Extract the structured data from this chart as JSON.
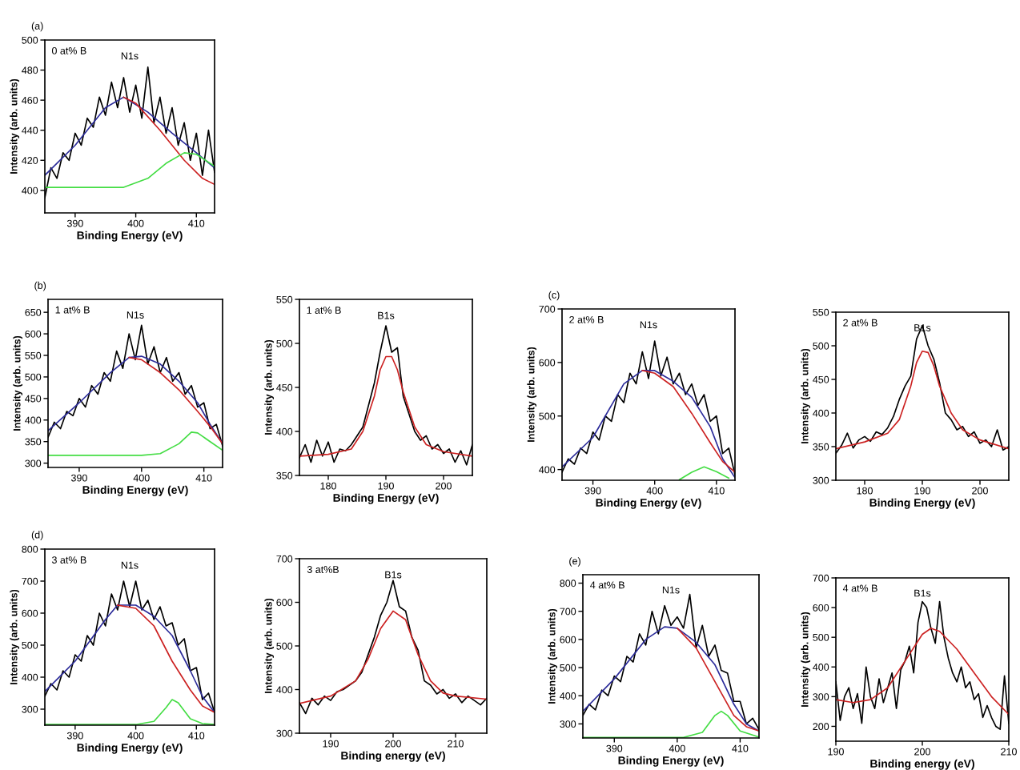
{
  "chart_data": [
    {
      "type": "line",
      "title": "(a)",
      "xlabel": "Binding Energy (eV)",
      "ylabel": "Intensity (arb. units)",
      "annotations": [
        "0 at% B",
        "N1s"
      ],
      "xlim": [
        385,
        413
      ],
      "ylim": [
        385,
        500
      ],
      "xticks": [
        390,
        400,
        410
      ],
      "yticks": [
        400,
        420,
        440,
        460,
        480,
        500
      ],
      "series": [
        {
          "color": "#000000",
          "x": [
            385,
            386,
            387,
            388,
            389,
            390,
            391,
            392,
            393,
            394,
            395,
            396,
            397,
            398,
            399,
            400,
            401,
            402,
            403,
            404,
            405,
            406,
            407,
            408,
            409,
            410,
            411,
            412,
            413
          ],
          "values": [
            395,
            415,
            408,
            425,
            420,
            438,
            430,
            448,
            442,
            462,
            450,
            472,
            455,
            475,
            452,
            470,
            448,
            482,
            445,
            462,
            438,
            455,
            430,
            445,
            420,
            438,
            410,
            440,
            412
          ]
        },
        {
          "color": "#2b2b9a",
          "x": [
            385,
            390,
            395,
            398,
            402,
            406,
            410,
            413
          ],
          "values": [
            410,
            430,
            455,
            462,
            452,
            438,
            425,
            415
          ]
        },
        {
          "color": "#cc2222",
          "x": [
            398,
            400,
            404,
            408,
            411,
            413
          ],
          "values": [
            462,
            458,
            440,
            420,
            408,
            404
          ]
        },
        {
          "color": "#44dd44",
          "x": [
            385,
            398,
            402,
            405,
            408,
            410,
            413
          ],
          "values": [
            402,
            402,
            408,
            418,
            425,
            424,
            416
          ]
        }
      ]
    },
    {
      "type": "line",
      "title": "(b)",
      "xlabel": "Binding Energy (eV)",
      "ylabel": "Intensity (arb. units)",
      "annotations": [
        "1 at% B",
        "N1s"
      ],
      "xlim": [
        385,
        413
      ],
      "ylim": [
        290,
        680
      ],
      "xticks": [
        390,
        400,
        410
      ],
      "yticks": [
        300,
        350,
        400,
        450,
        500,
        550,
        600,
        650
      ],
      "series": [
        {
          "color": "#000000",
          "x": [
            385,
            386,
            387,
            388,
            389,
            390,
            391,
            392,
            393,
            394,
            395,
            396,
            397,
            398,
            399,
            400,
            401,
            402,
            403,
            404,
            405,
            406,
            407,
            408,
            409,
            410,
            411,
            412,
            413
          ],
          "values": [
            360,
            395,
            380,
            420,
            410,
            450,
            430,
            480,
            460,
            510,
            490,
            560,
            520,
            600,
            540,
            620,
            530,
            570,
            510,
            545,
            490,
            510,
            460,
            480,
            430,
            440,
            380,
            390,
            340
          ]
        },
        {
          "color": "#2b2b9a",
          "x": [
            385,
            390,
            395,
            398,
            400,
            403,
            406,
            409,
            411,
            413
          ],
          "values": [
            375,
            440,
            510,
            545,
            548,
            530,
            490,
            440,
            390,
            345
          ]
        },
        {
          "color": "#cc2222",
          "x": [
            398,
            400,
            403,
            406,
            409,
            411,
            413
          ],
          "values": [
            545,
            540,
            510,
            470,
            420,
            385,
            345
          ]
        },
        {
          "color": "#44dd44",
          "x": [
            385,
            400,
            403,
            406,
            408,
            409,
            411,
            413
          ],
          "values": [
            318,
            318,
            322,
            345,
            372,
            370,
            350,
            330
          ]
        }
      ]
    },
    {
      "type": "line",
      "xlabel": "Binding Energy (eV)",
      "ylabel": "Intensity (arb. units)",
      "annotations": [
        "1 at% B",
        "B1s"
      ],
      "xlim": [
        175,
        205
      ],
      "ylim": [
        350,
        550
      ],
      "xticks": [
        180,
        190,
        200
      ],
      "yticks": [
        350,
        400,
        450,
        500,
        550
      ],
      "series": [
        {
          "color": "#000000",
          "x": [
            175,
            176,
            177,
            178,
            179,
            180,
            181,
            182,
            183,
            184,
            185,
            186,
            187,
            188,
            189,
            190,
            191,
            192,
            193,
            194,
            195,
            196,
            197,
            198,
            199,
            200,
            201,
            202,
            203,
            204,
            205
          ],
          "values": [
            370,
            385,
            365,
            390,
            372,
            388,
            365,
            380,
            378,
            385,
            395,
            405,
            430,
            455,
            490,
            520,
            490,
            495,
            440,
            420,
            400,
            390,
            395,
            380,
            385,
            375,
            380,
            365,
            378,
            362,
            385
          ]
        },
        {
          "color": "#cc2222",
          "x": [
            175,
            180,
            184,
            186,
            188,
            189,
            190,
            191,
            192,
            193,
            195,
            197,
            200,
            205
          ],
          "values": [
            372,
            374,
            380,
            400,
            440,
            470,
            485,
            485,
            470,
            445,
            405,
            385,
            377,
            372
          ]
        }
      ]
    },
    {
      "type": "line",
      "title": "(c)",
      "xlabel": "Binding Energy (eV)",
      "ylabel": "Intensity (arb. units)",
      "annotations": [
        "2 at% B",
        "N1s"
      ],
      "xlim": [
        385,
        413
      ],
      "ylim": [
        380,
        700
      ],
      "xticks": [
        390,
        400,
        410
      ],
      "yticks": [
        400,
        500,
        600,
        700
      ],
      "series": [
        {
          "color": "#000000",
          "x": [
            385,
            386,
            387,
            388,
            389,
            390,
            391,
            392,
            393,
            394,
            395,
            396,
            397,
            398,
            399,
            400,
            401,
            402,
            403,
            404,
            405,
            406,
            407,
            408,
            409,
            410,
            411,
            412,
            413
          ],
          "values": [
            395,
            420,
            410,
            440,
            430,
            470,
            455,
            500,
            490,
            540,
            525,
            580,
            560,
            620,
            570,
            640,
            575,
            610,
            560,
            580,
            540,
            560,
            520,
            540,
            490,
            500,
            430,
            440,
            390
          ]
        },
        {
          "color": "#2b2b9a",
          "x": [
            385,
            390,
            395,
            398,
            400,
            403,
            406,
            409,
            411,
            413
          ],
          "values": [
            405,
            460,
            560,
            585,
            585,
            565,
            535,
            480,
            420,
            385
          ]
        },
        {
          "color": "#cc2222",
          "x": [
            398,
            400,
            403,
            406,
            409,
            411,
            413
          ],
          "values": [
            585,
            580,
            555,
            505,
            450,
            415,
            395
          ]
        },
        {
          "color": "#44dd44",
          "x": [
            404,
            406,
            408,
            410,
            412
          ],
          "values": [
            381,
            395,
            405,
            396,
            384
          ]
        }
      ]
    },
    {
      "type": "line",
      "xlabel": "Binding Energy (eV)",
      "ylabel": "Intensity (arb. units)",
      "annotations": [
        "2 at% B",
        "B1s"
      ],
      "xlim": [
        175,
        205
      ],
      "ylim": [
        300,
        550
      ],
      "xticks": [
        180,
        190,
        200
      ],
      "yticks": [
        300,
        350,
        400,
        450,
        500,
        550
      ],
      "series": [
        {
          "color": "#000000",
          "x": [
            175,
            176,
            177,
            178,
            179,
            180,
            181,
            182,
            183,
            184,
            185,
            186,
            187,
            188,
            189,
            190,
            191,
            192,
            193,
            194,
            195,
            196,
            197,
            198,
            199,
            200,
            201,
            202,
            203,
            204,
            205
          ],
          "values": [
            340,
            352,
            370,
            348,
            360,
            365,
            358,
            372,
            368,
            378,
            395,
            420,
            440,
            455,
            510,
            530,
            500,
            480,
            445,
            400,
            390,
            375,
            380,
            365,
            372,
            355,
            360,
            350,
            375,
            345,
            350
          ]
        },
        {
          "color": "#cc2222",
          "x": [
            175,
            180,
            184,
            186,
            188,
            189,
            190,
            191,
            192,
            193,
            195,
            197,
            200,
            205
          ],
          "values": [
            347,
            357,
            370,
            390,
            440,
            475,
            492,
            490,
            470,
            440,
            400,
            375,
            360,
            347
          ]
        }
      ]
    },
    {
      "type": "line",
      "title": "(d)",
      "xlabel": "Binding Energy (eV)",
      "ylabel": "Intensity (arb. units)",
      "annotations": [
        "3 at% B",
        "N1s"
      ],
      "xlim": [
        385,
        413
      ],
      "ylim": [
        250,
        800
      ],
      "xticks": [
        390,
        400,
        410
      ],
      "yticks": [
        300,
        400,
        500,
        600,
        700,
        800
      ],
      "series": [
        {
          "color": "#000000",
          "x": [
            385,
            386,
            387,
            388,
            389,
            390,
            391,
            392,
            393,
            394,
            395,
            396,
            397,
            398,
            399,
            400,
            401,
            402,
            403,
            404,
            405,
            406,
            407,
            408,
            409,
            410,
            411,
            412,
            413
          ],
          "values": [
            340,
            380,
            360,
            420,
            400,
            470,
            450,
            530,
            500,
            600,
            560,
            660,
            610,
            700,
            620,
            700,
            610,
            640,
            580,
            620,
            560,
            570,
            500,
            520,
            420,
            430,
            330,
            350,
            290
          ]
        },
        {
          "color": "#2b2b9a",
          "x": [
            385,
            390,
            395,
            397,
            400,
            403,
            406,
            409,
            411,
            413
          ],
          "values": [
            355,
            450,
            580,
            625,
            625,
            590,
            530,
            420,
            340,
            290
          ]
        },
        {
          "color": "#cc2222",
          "x": [
            397,
            400,
            403,
            406,
            409,
            411,
            413
          ],
          "values": [
            625,
            615,
            560,
            450,
            360,
            310,
            290
          ]
        },
        {
          "color": "#44dd44",
          "x": [
            385,
            400,
            403,
            405,
            406,
            407,
            409,
            411,
            413
          ],
          "values": [
            252,
            252,
            262,
            305,
            330,
            320,
            270,
            255,
            252
          ]
        }
      ]
    },
    {
      "type": "line",
      "xlabel": "Binding energy (eV)",
      "ylabel": "Intensity (arb. units)",
      "annotations": [
        "3 at%B",
        "B1s"
      ],
      "xlim": [
        185,
        215
      ],
      "ylim": [
        300,
        700
      ],
      "xticks": [
        190,
        200,
        210
      ],
      "yticks": [
        300,
        400,
        500,
        600,
        700
      ],
      "series": [
        {
          "color": "#000000",
          "x": [
            185,
            186,
            187,
            188,
            189,
            190,
            191,
            192,
            193,
            194,
            195,
            196,
            197,
            198,
            199,
            200,
            201,
            202,
            203,
            204,
            205,
            206,
            207,
            208,
            209,
            210,
            211,
            212,
            213,
            214,
            215
          ],
          "values": [
            370,
            345,
            380,
            365,
            385,
            375,
            395,
            400,
            410,
            420,
            440,
            480,
            520,
            570,
            600,
            650,
            590,
            580,
            520,
            490,
            420,
            410,
            390,
            400,
            380,
            390,
            370,
            385,
            375,
            365,
            380
          ]
        },
        {
          "color": "#cc2222",
          "x": [
            185,
            190,
            194,
            196,
            198,
            200,
            202,
            204,
            206,
            208,
            210,
            215
          ],
          "values": [
            368,
            385,
            420,
            470,
            540,
            580,
            560,
            480,
            420,
            392,
            385,
            378
          ]
        }
      ]
    },
    {
      "type": "line",
      "title": "(e)",
      "xlabel": "Binding Energy (eV)",
      "ylabel": "Intensity (arb. units)",
      "annotations": [
        "4 at% B",
        "N1s"
      ],
      "xlim": [
        385,
        413
      ],
      "ylim": [
        250,
        830
      ],
      "xticks": [
        390,
        400,
        410
      ],
      "yticks": [
        300,
        400,
        500,
        600,
        700,
        800
      ],
      "series": [
        {
          "color": "#000000",
          "x": [
            385,
            386,
            387,
            388,
            389,
            390,
            391,
            392,
            393,
            394,
            395,
            396,
            397,
            398,
            399,
            400,
            401,
            402,
            403,
            404,
            405,
            406,
            407,
            408,
            409,
            410,
            411,
            412,
            413
          ],
          "values": [
            330,
            370,
            350,
            420,
            400,
            470,
            450,
            540,
            520,
            620,
            580,
            700,
            620,
            720,
            650,
            680,
            640,
            760,
            570,
            650,
            540,
            580,
            490,
            480,
            380,
            380,
            300,
            320,
            280
          ]
        },
        {
          "color": "#2b2b9a",
          "x": [
            385,
            390,
            395,
            398,
            400,
            403,
            406,
            409,
            411,
            413
          ],
          "values": [
            345,
            460,
            600,
            645,
            640,
            590,
            510,
            370,
            300,
            275
          ]
        },
        {
          "color": "#cc2222",
          "x": [
            400,
            403,
            406,
            409,
            411,
            413
          ],
          "values": [
            640,
            570,
            450,
            330,
            290,
            275
          ]
        },
        {
          "color": "#44dd44",
          "x": [
            385,
            401,
            404,
            406,
            407,
            408,
            410,
            413
          ],
          "values": [
            252,
            252,
            270,
            330,
            345,
            330,
            275,
            253
          ]
        }
      ]
    },
    {
      "type": "line",
      "xlabel": "Binding energy (eV)",
      "ylabel": "Intensity (arb. units)",
      "annotations": [
        "4 at% B",
        "B1s"
      ],
      "xlim": [
        190,
        210
      ],
      "ylim": [
        150,
        700
      ],
      "xticks": [
        190,
        200,
        210
      ],
      "yticks": [
        200,
        300,
        400,
        500,
        600,
        700
      ],
      "series": [
        {
          "color": "#000000",
          "x": [
            190,
            190.5,
            191,
            191.5,
            192,
            192.5,
            193,
            193.5,
            194,
            194.5,
            195,
            195.5,
            196,
            196.5,
            197,
            197.5,
            198,
            198.5,
            199,
            199.5,
            200,
            200.5,
            201,
            201.5,
            202,
            202.5,
            203,
            203.5,
            204,
            204.5,
            205,
            205.5,
            206,
            206.5,
            207,
            207.5,
            208,
            208.5,
            209,
            209.5,
            210
          ],
          "values": [
            350,
            220,
            300,
            330,
            260,
            310,
            210,
            400,
            300,
            260,
            360,
            280,
            330,
            380,
            260,
            390,
            420,
            470,
            380,
            550,
            620,
            600,
            530,
            480,
            620,
            500,
            430,
            380,
            350,
            400,
            330,
            350,
            290,
            310,
            230,
            270,
            230,
            200,
            190,
            370,
            210
          ]
        },
        {
          "color": "#cc2222",
          "x": [
            190,
            192,
            194,
            196,
            198,
            200,
            201,
            202,
            204,
            206,
            208,
            210
          ],
          "values": [
            290,
            280,
            290,
            330,
            420,
            510,
            530,
            520,
            460,
            380,
            300,
            240
          ]
        }
      ]
    }
  ]
}
